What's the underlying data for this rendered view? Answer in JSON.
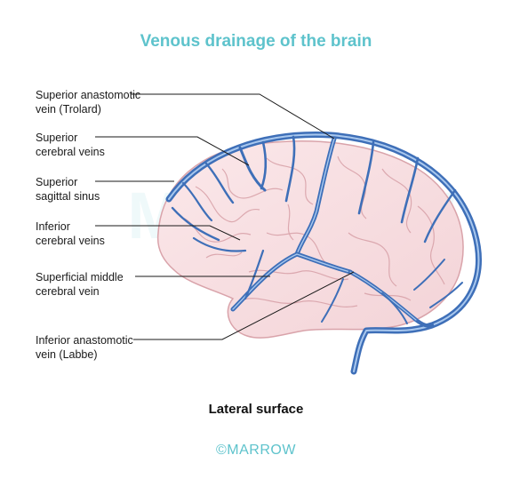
{
  "title": "Venous drainage of the brain",
  "labels": {
    "superior_anastomotic": [
      "Superior anastomotic",
      "vein (Trolard)"
    ],
    "superior_cerebral": [
      "Superior",
      "cerebral veins"
    ],
    "superior_sagittal": [
      "Superior",
      "sagittal sinus"
    ],
    "inferior_cerebral": [
      "Inferior",
      "cerebral veins"
    ],
    "superficial_middle": [
      "Superficial middle",
      "cerebral vein"
    ],
    "inferior_anastomotic": [
      "Inferior anastomotic",
      "vein (Labbe)"
    ]
  },
  "caption": "Lateral surface",
  "credit": "©MARROW",
  "watermark": "MARROW",
  "colors": {
    "title": "#5ec3cc",
    "vein": "#3e6fb8",
    "vein_highlight": "#a9c8ee",
    "brain_fill": "#f8e1e3",
    "brain_outline": "#d9a3aa"
  }
}
